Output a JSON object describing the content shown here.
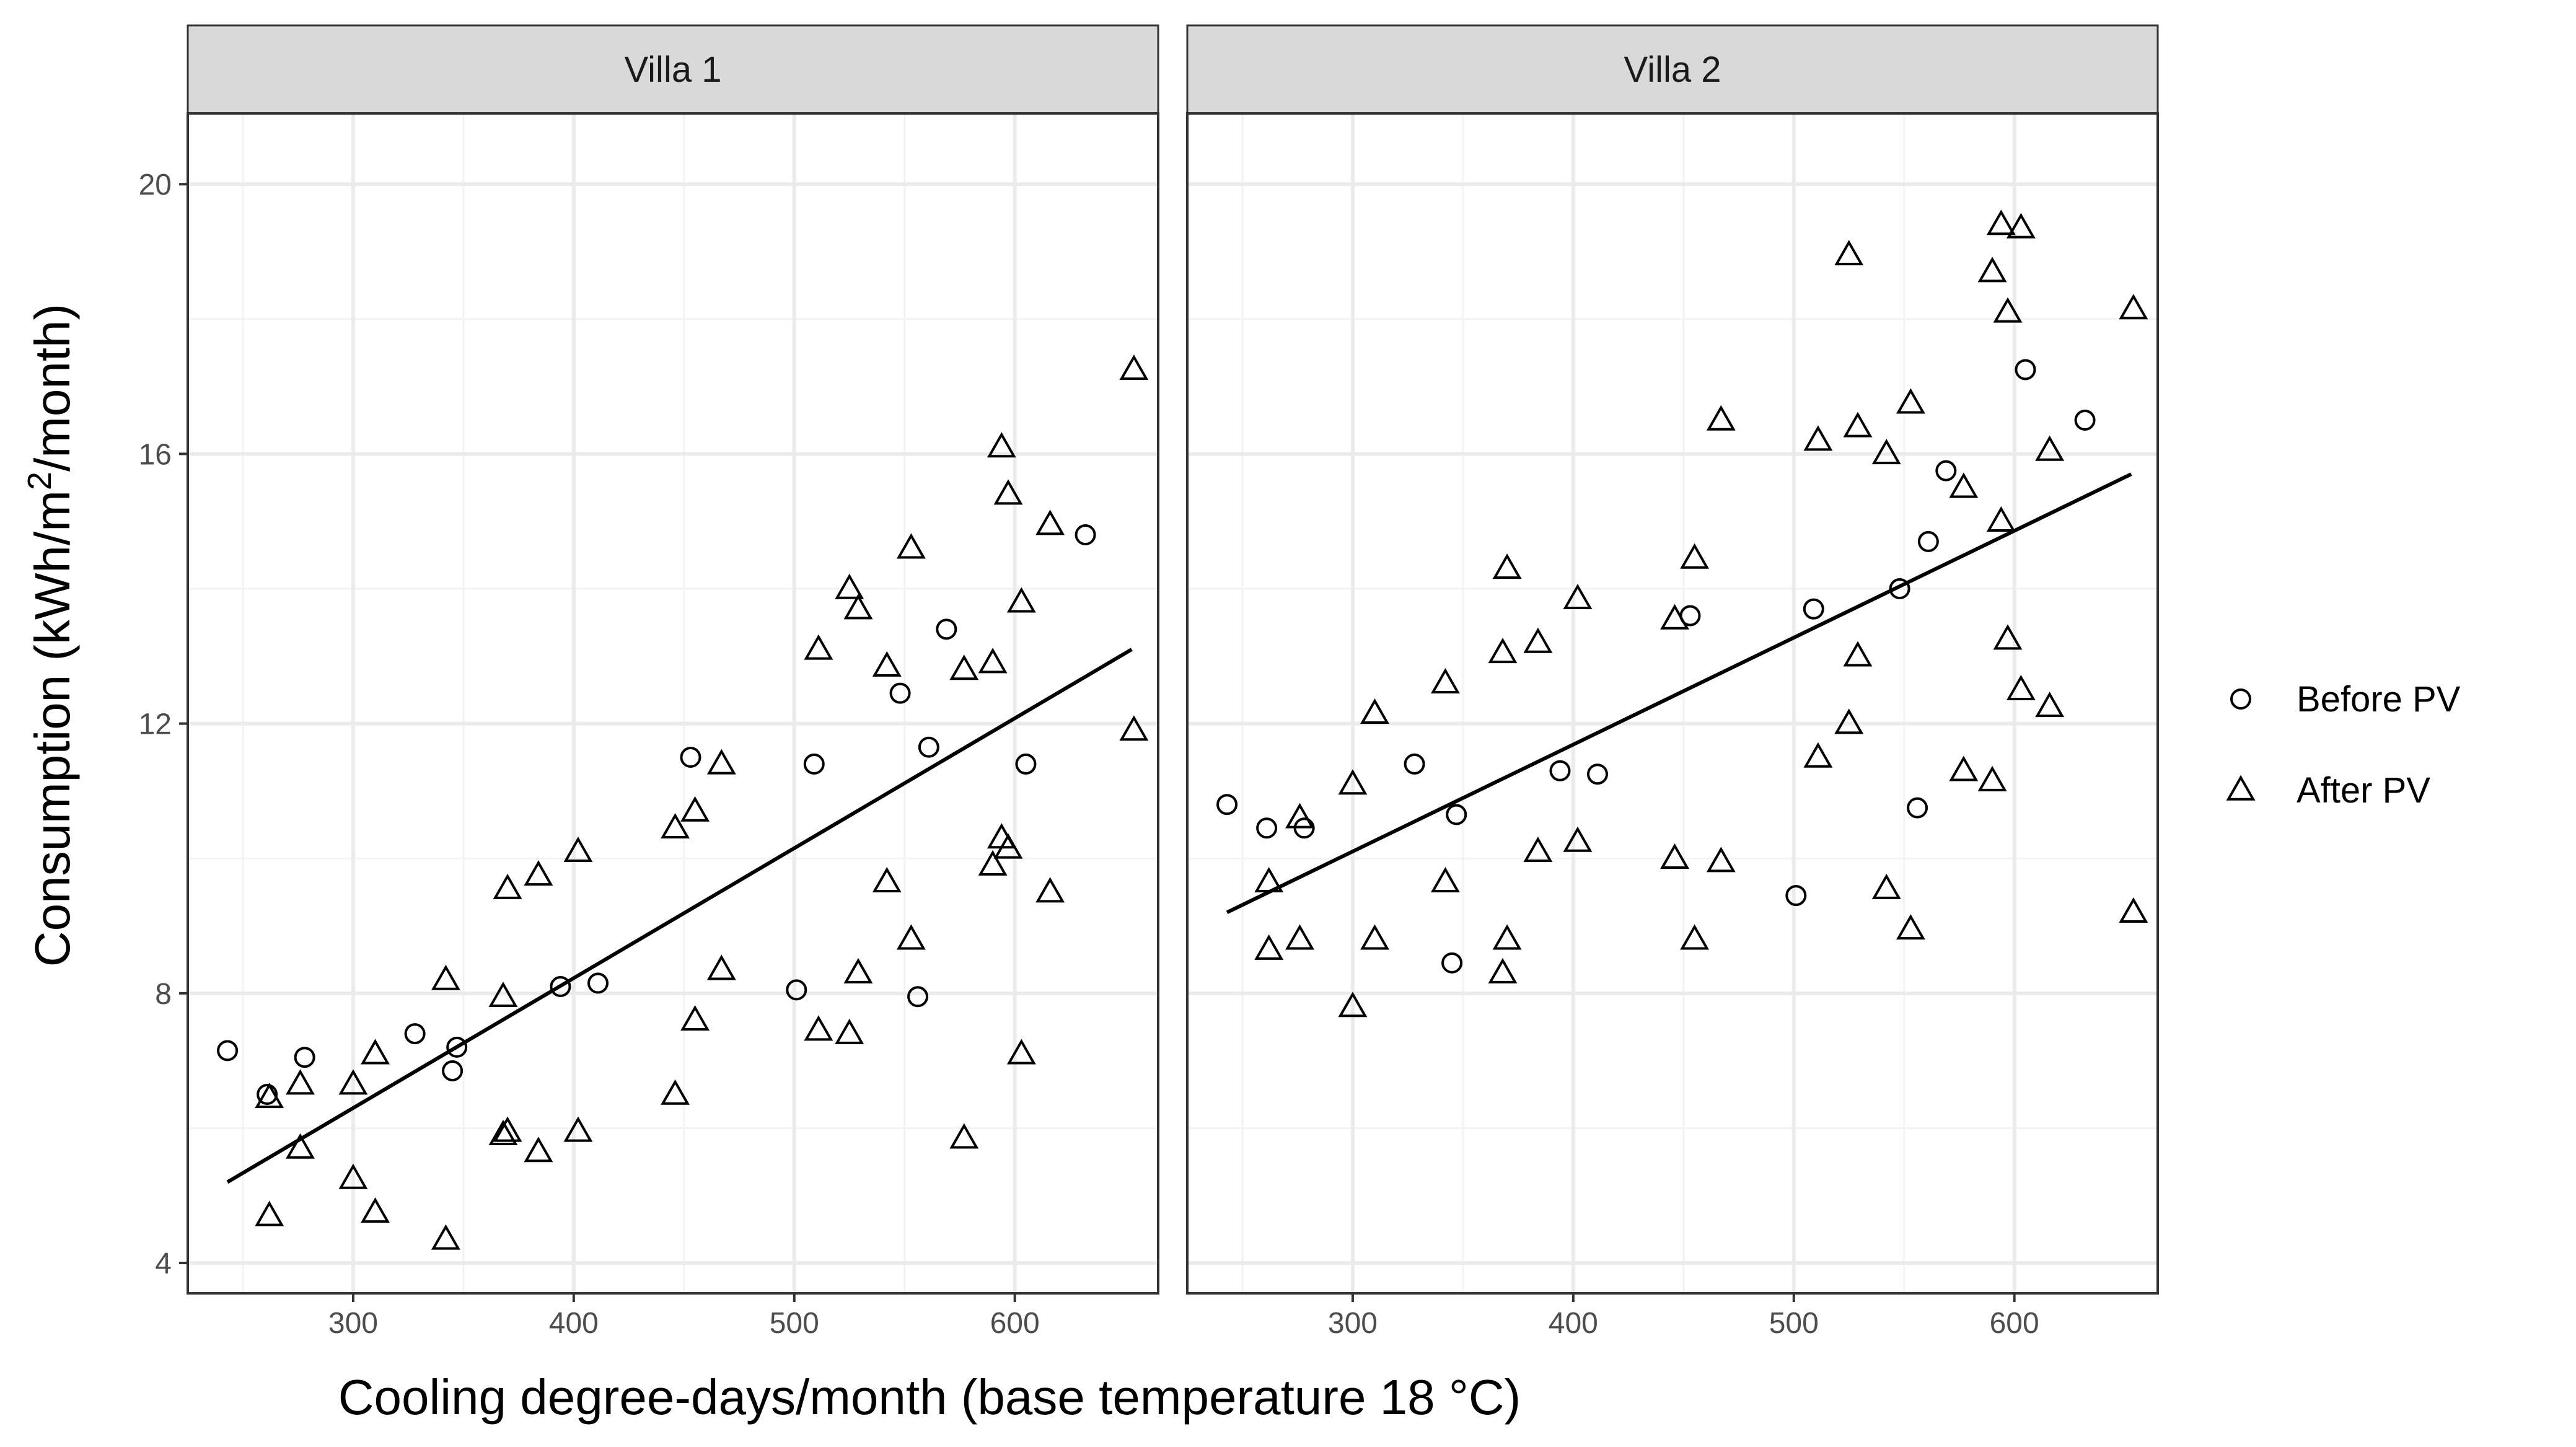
{
  "chart_data": {
    "type": "scatter",
    "xlabel": "Cooling degree-days/month (base temperature 18 °C)",
    "ylabel_parts": [
      "Consumption (kWh/m",
      "2",
      "/month)"
    ],
    "x_ticks": [
      300,
      400,
      500,
      600
    ],
    "y_ticks": [
      4,
      8,
      12,
      16,
      20
    ],
    "xlim": [
      225,
      665
    ],
    "ylim": [
      3.55,
      21.05
    ],
    "legend": [
      {
        "name": "Before PV",
        "shape": "circle"
      },
      {
        "name": "After PV",
        "shape": "triangle"
      }
    ],
    "panels": [
      {
        "title": "Villa 1",
        "fit_line": [
          [
            243,
            5.2
          ],
          [
            653,
            13.1
          ]
        ],
        "before": [
          [
            243,
            7.15
          ],
          [
            261,
            6.5
          ],
          [
            278,
            7.05
          ],
          [
            328,
            7.4
          ],
          [
            345,
            6.85
          ],
          [
            347,
            7.2
          ],
          [
            394,
            8.1
          ],
          [
            411,
            8.15
          ],
          [
            453,
            11.5
          ],
          [
            501,
            8.05
          ],
          [
            509,
            11.4
          ],
          [
            548,
            12.45
          ],
          [
            556,
            7.95
          ],
          [
            561,
            11.65
          ],
          [
            569,
            13.4
          ],
          [
            605,
            11.4
          ],
          [
            632,
            14.8
          ]
        ],
        "after": [
          [
            262,
            6.45
          ],
          [
            262,
            4.7
          ],
          [
            276,
            6.65
          ],
          [
            276,
            5.7
          ],
          [
            300,
            6.65
          ],
          [
            300,
            5.25
          ],
          [
            310,
            7.1
          ],
          [
            310,
            4.75
          ],
          [
            342,
            8.2
          ],
          [
            342,
            4.35
          ],
          [
            368,
            7.95
          ],
          [
            368,
            5.9
          ],
          [
            370,
            9.55
          ],
          [
            370,
            5.95
          ],
          [
            384,
            9.75
          ],
          [
            384,
            5.65
          ],
          [
            402,
            10.1
          ],
          [
            402,
            5.95
          ],
          [
            446,
            10.45
          ],
          [
            446,
            6.5
          ],
          [
            455,
            10.7
          ],
          [
            455,
            7.6
          ],
          [
            467,
            11.4
          ],
          [
            467,
            8.35
          ],
          [
            511,
            13.1
          ],
          [
            511,
            7.45
          ],
          [
            525,
            14.0
          ],
          [
            525,
            7.4
          ],
          [
            529,
            13.7
          ],
          [
            529,
            8.3
          ],
          [
            542,
            12.85
          ],
          [
            542,
            9.65
          ],
          [
            553,
            14.6
          ],
          [
            553,
            8.8
          ],
          [
            577,
            12.8
          ],
          [
            577,
            5.85
          ],
          [
            590,
            12.9
          ],
          [
            590,
            9.9
          ],
          [
            594,
            16.1
          ],
          [
            594,
            10.3
          ],
          [
            597,
            15.4
          ],
          [
            597,
            10.15
          ],
          [
            603,
            13.8
          ],
          [
            603,
            7.1
          ],
          [
            616,
            14.95
          ],
          [
            616,
            9.5
          ],
          [
            654,
            17.25
          ],
          [
            654,
            11.9
          ]
        ]
      },
      {
        "title": "Villa 2",
        "fit_line": [
          [
            243,
            9.2
          ],
          [
            653,
            15.7
          ]
        ],
        "before": [
          [
            243,
            10.8
          ],
          [
            261,
            10.45
          ],
          [
            278,
            10.45
          ],
          [
            328,
            11.4
          ],
          [
            345,
            8.45
          ],
          [
            347,
            10.65
          ],
          [
            394,
            11.3
          ],
          [
            411,
            11.25
          ],
          [
            453,
            13.6
          ],
          [
            501,
            9.45
          ],
          [
            509,
            13.7
          ],
          [
            548,
            14.0
          ],
          [
            556,
            10.75
          ],
          [
            561,
            14.7
          ],
          [
            569,
            15.75
          ],
          [
            605,
            17.25
          ],
          [
            632,
            16.5
          ]
        ],
        "after": [
          [
            262,
            9.65
          ],
          [
            262,
            8.65
          ],
          [
            276,
            10.6
          ],
          [
            276,
            8.8
          ],
          [
            300,
            11.1
          ],
          [
            300,
            7.8
          ],
          [
            310,
            12.15
          ],
          [
            310,
            8.8
          ],
          [
            342,
            12.6
          ],
          [
            342,
            9.65
          ],
          [
            368,
            13.05
          ],
          [
            368,
            8.3
          ],
          [
            370,
            14.3
          ],
          [
            370,
            8.8
          ],
          [
            384,
            13.2
          ],
          [
            384,
            10.1
          ],
          [
            402,
            13.85
          ],
          [
            402,
            10.25
          ],
          [
            446,
            13.55
          ],
          [
            446,
            10.0
          ],
          [
            455,
            14.45
          ],
          [
            455,
            8.8
          ],
          [
            467,
            16.5
          ],
          [
            467,
            9.95
          ],
          [
            511,
            16.2
          ],
          [
            511,
            11.5
          ],
          [
            525,
            18.95
          ],
          [
            525,
            12.0
          ],
          [
            529,
            16.4
          ],
          [
            529,
            13.0
          ],
          [
            542,
            16.0
          ],
          [
            542,
            9.55
          ],
          [
            553,
            16.75
          ],
          [
            553,
            8.95
          ],
          [
            577,
            15.5
          ],
          [
            577,
            11.3
          ],
          [
            590,
            18.7
          ],
          [
            590,
            11.15
          ],
          [
            594,
            19.4
          ],
          [
            594,
            15.0
          ],
          [
            597,
            18.1
          ],
          [
            597,
            13.25
          ],
          [
            603,
            19.35
          ],
          [
            603,
            12.5
          ],
          [
            616,
            16.05
          ],
          [
            616,
            12.25
          ],
          [
            654,
            18.15
          ],
          [
            654,
            9.2
          ]
        ]
      }
    ]
  }
}
